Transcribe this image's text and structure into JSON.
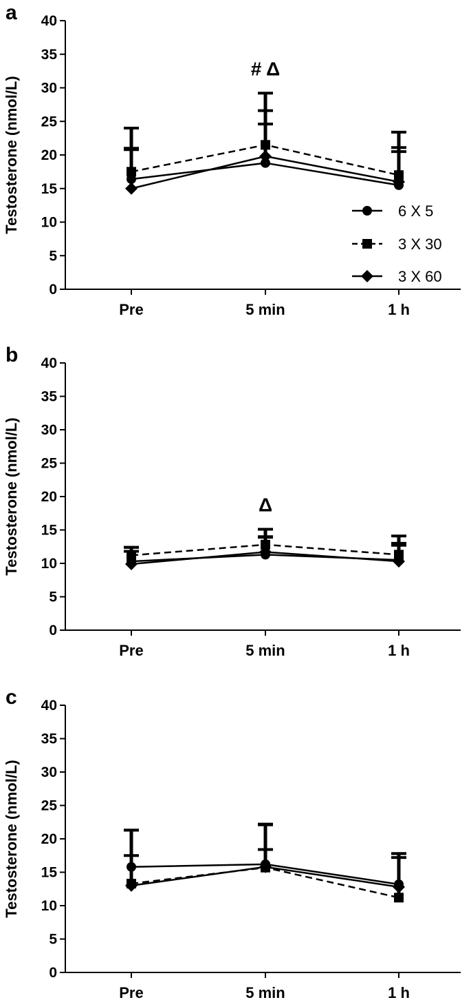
{
  "chart_data": [
    {
      "panel": "a",
      "type": "line",
      "categories": [
        "Pre",
        "5 min",
        "1 h"
      ],
      "ylabel": "Testosterone (nmol/L)",
      "ylim": [
        0,
        40
      ],
      "yticks": [
        0,
        5,
        10,
        15,
        20,
        25,
        30,
        35,
        40
      ],
      "annotation": "# Δ",
      "annotation_at": "5 min",
      "legend": {
        "position": "bottom-right"
      },
      "series": [
        {
          "name": "6 X 5",
          "marker": "circle",
          "line": "solid",
          "values": [
            16.4,
            18.8,
            15.5
          ],
          "error": [
            4.6,
            7.8,
            5.0
          ]
        },
        {
          "name": "3 X 30",
          "marker": "square",
          "line": "dashed",
          "values": [
            17.5,
            21.5,
            17.0
          ],
          "error": [
            6.5,
            7.7,
            6.4
          ]
        },
        {
          "name": "3 X 60",
          "marker": "diamond",
          "line": "solid",
          "values": [
            15.0,
            19.8,
            16.0
          ],
          "error": [
            5.8,
            4.8,
            5.1
          ]
        }
      ]
    },
    {
      "panel": "b",
      "type": "line",
      "categories": [
        "Pre",
        "5 min",
        "1 h"
      ],
      "ylabel": "Testosterone (nmol/L)",
      "ylim": [
        0,
        40
      ],
      "yticks": [
        0,
        5,
        10,
        15,
        20,
        25,
        30,
        35,
        40
      ],
      "annotation": "Δ",
      "annotation_at": "5 min",
      "series": [
        {
          "name": "6 X 5",
          "marker": "circle",
          "line": "solid",
          "values": [
            10.3,
            11.3,
            10.5
          ],
          "error": [
            1.5,
            2.6,
            2.2
          ]
        },
        {
          "name": "3 X 30",
          "marker": "square",
          "line": "dashed",
          "values": [
            11.2,
            12.8,
            11.3
          ],
          "error": [
            1.2,
            2.3,
            1.7
          ]
        },
        {
          "name": "3 X 60",
          "marker": "diamond",
          "line": "solid",
          "values": [
            9.9,
            11.7,
            10.3
          ],
          "error": [
            2.5,
            2.3,
            3.8
          ]
        }
      ]
    },
    {
      "panel": "c",
      "type": "line",
      "categories": [
        "Pre",
        "5 min",
        "1 h"
      ],
      "ylabel": "Testosterone (nmol/L)",
      "ylim": [
        0,
        40
      ],
      "yticks": [
        0,
        5,
        10,
        15,
        20,
        25,
        30,
        35,
        40
      ],
      "series": [
        {
          "name": "6 X 5",
          "marker": "circle",
          "line": "solid",
          "values": [
            15.8,
            16.2,
            13.2
          ],
          "error": [
            5.5,
            5.9,
            4.6
          ]
        },
        {
          "name": "3 X 30",
          "marker": "square",
          "line": "dashed",
          "values": [
            13.3,
            15.7,
            11.2
          ],
          "error": [
            4.2,
            6.5,
            6.6
          ]
        },
        {
          "name": "3 X 60",
          "marker": "diamond",
          "line": "solid",
          "values": [
            13.0,
            15.8,
            12.8
          ],
          "error": [
            8.3,
            2.6,
            4.4
          ]
        }
      ]
    }
  ]
}
